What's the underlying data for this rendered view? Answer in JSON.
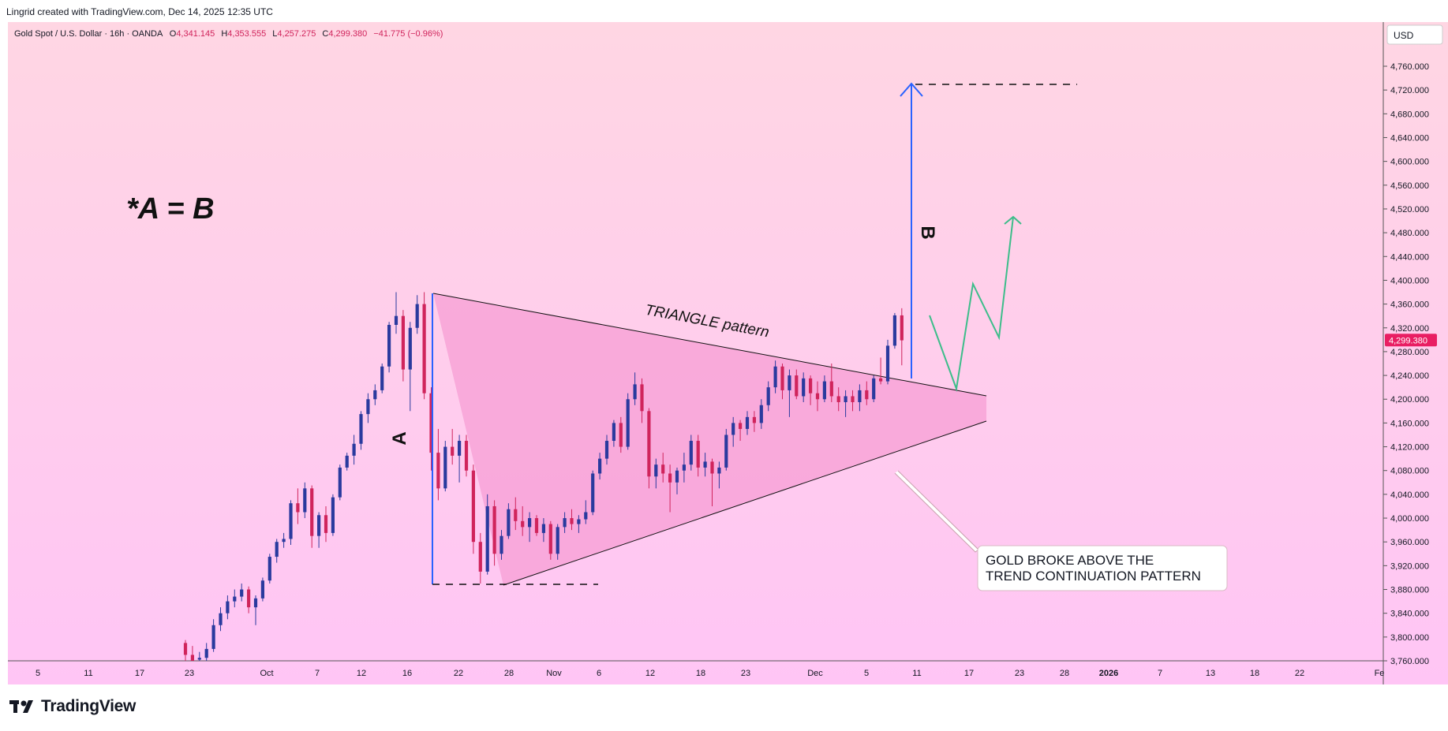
{
  "credit": "Lingrid created with TradingView.com, Dec 14, 2025 12:35 UTC",
  "brand": "TradingView",
  "currency": "USD",
  "colors": {
    "bg_top": "#ffd6e3",
    "bg_bottom": "#ffc5f5",
    "bull": "#2a3a9e",
    "bear": "#d0245c",
    "triangle_fill": "#f79bd3",
    "arrow": "#2962ff",
    "projection": "#3dbd8a",
    "price_tag": "#e91e63"
  },
  "symbol": {
    "name": "Gold Spot / U.S. Dollar · 16h · OANDA",
    "o_label": "O",
    "o": "4,341.145",
    "h_label": "H",
    "h": "4,353.555",
    "l_label": "L",
    "l": "4,257.275",
    "c_label": "C",
    "c": "4,299.380",
    "change": "−41.775 (−0.96%)"
  },
  "annotations": {
    "formula": "*A = B",
    "label_a": "A",
    "label_b": "B",
    "triangle": "TRIANGLE pattern",
    "callout_line1": "GOLD BROKE ABOVE THE",
    "callout_line2": "TREND CONTINUATION PATTERN"
  },
  "chart_data": {
    "type": "candlestick",
    "last_price": 4299.38,
    "last_price_label": "4,299.380",
    "ylim": [
      3750,
      4800
    ],
    "y_ticks": [
      3760,
      3800,
      3840,
      3880,
      3920,
      3960,
      4000,
      4040,
      4080,
      4120,
      4160,
      4200,
      4240,
      4280,
      4320,
      4360,
      4400,
      4440,
      4480,
      4520,
      4560,
      4600,
      4640,
      4680,
      4720,
      4760
    ],
    "y_tick_labels": [
      "3,760.000",
      "3,800.000",
      "3,840.000",
      "3,880.000",
      "3,920.000",
      "3,960.000",
      "4,000.000",
      "4,040.000",
      "4,080.000",
      "4,120.000",
      "4,160.000",
      "4,200.000",
      "4,240.000",
      "4,280.000",
      "4,320.000",
      "4,360.000",
      "4,400.000",
      "4,440.000",
      "4,480.000",
      "4,520.000",
      "4,560.000",
      "4,600.000",
      "4,640.000",
      "4,680.000",
      "4,720.000",
      "4,760.000"
    ],
    "x_ticks": [
      {
        "label": "5",
        "bold": false
      },
      {
        "label": "11",
        "bold": false
      },
      {
        "label": "17",
        "bold": false
      },
      {
        "label": "23",
        "bold": false
      },
      {
        "label": "Oct",
        "bold": false
      },
      {
        "label": "7",
        "bold": false
      },
      {
        "label": "12",
        "bold": false
      },
      {
        "label": "16",
        "bold": false
      },
      {
        "label": "22",
        "bold": false
      },
      {
        "label": "28",
        "bold": false
      },
      {
        "label": "Nov",
        "bold": false
      },
      {
        "label": "6",
        "bold": false
      },
      {
        "label": "12",
        "bold": false
      },
      {
        "label": "18",
        "bold": false
      },
      {
        "label": "23",
        "bold": false
      },
      {
        "label": "Dec",
        "bold": false
      },
      {
        "label": "5",
        "bold": false
      },
      {
        "label": "11",
        "bold": false
      },
      {
        "label": "17",
        "bold": false
      },
      {
        "label": "23",
        "bold": false
      },
      {
        "label": "28",
        "bold": false
      },
      {
        "label": "2026",
        "bold": true
      },
      {
        "label": "7",
        "bold": false
      },
      {
        "label": "13",
        "bold": false
      },
      {
        "label": "18",
        "bold": false
      },
      {
        "label": "22",
        "bold": false
      },
      {
        "label": "Fe",
        "bold": false
      }
    ],
    "candles": [
      [
        3790,
        3795,
        3760,
        3770
      ],
      [
        3770,
        3785,
        3755,
        3760
      ],
      [
        3762,
        3775,
        3748,
        3765
      ],
      [
        3765,
        3790,
        3758,
        3780
      ],
      [
        3780,
        3830,
        3775,
        3820
      ],
      [
        3820,
        3850,
        3810,
        3840
      ],
      [
        3840,
        3870,
        3830,
        3860
      ],
      [
        3860,
        3880,
        3850,
        3868
      ],
      [
        3868,
        3890,
        3860,
        3880
      ],
      [
        3880,
        3885,
        3840,
        3850
      ],
      [
        3850,
        3870,
        3820,
        3865
      ],
      [
        3865,
        3900,
        3860,
        3895
      ],
      [
        3895,
        3940,
        3890,
        3935
      ],
      [
        3935,
        3965,
        3925,
        3960
      ],
      [
        3960,
        3975,
        3950,
        3965
      ],
      [
        3965,
        4030,
        3955,
        4025
      ],
      [
        4025,
        4050,
        3990,
        4010
      ],
      [
        4010,
        4060,
        4000,
        4050
      ],
      [
        4050,
        4055,
        3950,
        3970
      ],
      [
        3970,
        4010,
        3950,
        4005
      ],
      [
        4005,
        4020,
        3960,
        3975
      ],
      [
        3975,
        4040,
        3970,
        4035
      ],
      [
        4035,
        4090,
        4030,
        4085
      ],
      [
        4085,
        4110,
        4080,
        4105
      ],
      [
        4105,
        4140,
        4090,
        4125
      ],
      [
        4125,
        4180,
        4115,
        4175
      ],
      [
        4175,
        4210,
        4160,
        4200
      ],
      [
        4200,
        4225,
        4190,
        4215
      ],
      [
        4215,
        4260,
        4210,
        4255
      ],
      [
        4255,
        4330,
        4245,
        4325
      ],
      [
        4325,
        4380,
        4310,
        4340
      ],
      [
        4340,
        4350,
        4230,
        4250
      ],
      [
        4250,
        4330,
        4180,
        4320
      ],
      [
        4320,
        4375,
        4310,
        4360
      ],
      [
        4360,
        4380,
        4200,
        4210
      ],
      [
        4210,
        4220,
        4080,
        4110
      ],
      [
        4110,
        4150,
        4030,
        4050
      ],
      [
        4050,
        4130,
        4045,
        4120
      ],
      [
        4120,
        4150,
        4090,
        4105
      ],
      [
        4105,
        4140,
        4060,
        4130
      ],
      [
        4130,
        4140,
        4070,
        4080
      ],
      [
        4080,
        4090,
        3940,
        3960
      ],
      [
        3960,
        3975,
        3890,
        3910
      ],
      [
        3910,
        4040,
        3905,
        4020
      ],
      [
        4020,
        4030,
        3920,
        3940
      ],
      [
        3940,
        3980,
        3930,
        3970
      ],
      [
        3970,
        4025,
        3965,
        4015
      ],
      [
        4015,
        4035,
        3980,
        3995
      ],
      [
        3995,
        4020,
        3970,
        3985
      ],
      [
        3985,
        4010,
        3960,
        4000
      ],
      [
        4000,
        4005,
        3970,
        3975
      ],
      [
        3975,
        4000,
        3960,
        3990
      ],
      [
        3990,
        3995,
        3930,
        3940
      ],
      [
        3940,
        3990,
        3930,
        3985
      ],
      [
        3985,
        4010,
        3975,
        4000
      ],
      [
        4000,
        4015,
        3980,
        3990
      ],
      [
        3990,
        4005,
        3975,
        3998
      ],
      [
        3998,
        4030,
        3990,
        4010
      ],
      [
        4010,
        4080,
        4005,
        4075
      ],
      [
        4075,
        4110,
        4065,
        4100
      ],
      [
        4100,
        4140,
        4090,
        4130
      ],
      [
        4130,
        4165,
        4120,
        4160
      ],
      [
        4160,
        4170,
        4110,
        4120
      ],
      [
        4120,
        4210,
        4115,
        4200
      ],
      [
        4200,
        4245,
        4190,
        4225
      ],
      [
        4225,
        4235,
        4160,
        4180
      ],
      [
        4180,
        4185,
        4050,
        4070
      ],
      [
        4070,
        4100,
        4050,
        4090
      ],
      [
        4090,
        4110,
        4060,
        4075
      ],
      [
        4075,
        4090,
        4010,
        4060
      ],
      [
        4060,
        4085,
        4040,
        4080
      ],
      [
        4080,
        4110,
        4060,
        4090
      ],
      [
        4090,
        4140,
        4080,
        4130
      ],
      [
        4130,
        4140,
        4070,
        4085
      ],
      [
        4085,
        4110,
        4070,
        4095
      ],
      [
        4095,
        4100,
        4020,
        4075
      ],
      [
        4075,
        4095,
        4050,
        4085
      ],
      [
        4085,
        4150,
        4080,
        4140
      ],
      [
        4140,
        4170,
        4120,
        4160
      ],
      [
        4160,
        4165,
        4130,
        4150
      ],
      [
        4150,
        4180,
        4140,
        4170
      ],
      [
        4170,
        4180,
        4145,
        4160
      ],
      [
        4160,
        4200,
        4150,
        4190
      ],
      [
        4190,
        4230,
        4180,
        4220
      ],
      [
        4220,
        4265,
        4210,
        4255
      ],
      [
        4255,
        4260,
        4200,
        4215
      ],
      [
        4215,
        4250,
        4170,
        4240
      ],
      [
        4240,
        4250,
        4200,
        4205
      ],
      [
        4205,
        4245,
        4195,
        4235
      ],
      [
        4235,
        4240,
        4190,
        4210
      ],
      [
        4210,
        4230,
        4180,
        4200
      ],
      [
        4200,
        4240,
        4195,
        4230
      ],
      [
        4230,
        4260,
        4195,
        4205
      ],
      [
        4205,
        4220,
        4180,
        4195
      ],
      [
        4195,
        4215,
        4170,
        4205
      ],
      [
        4205,
        4215,
        4180,
        4195
      ],
      [
        4195,
        4225,
        4180,
        4215
      ],
      [
        4215,
        4230,
        4190,
        4200
      ],
      [
        4200,
        4240,
        4195,
        4235
      ],
      [
        4235,
        4270,
        4225,
        4230
      ],
      [
        4230,
        4300,
        4225,
        4290
      ],
      [
        4290,
        4345,
        4285,
        4341
      ],
      [
        4341,
        4353,
        4257,
        4299
      ]
    ]
  }
}
